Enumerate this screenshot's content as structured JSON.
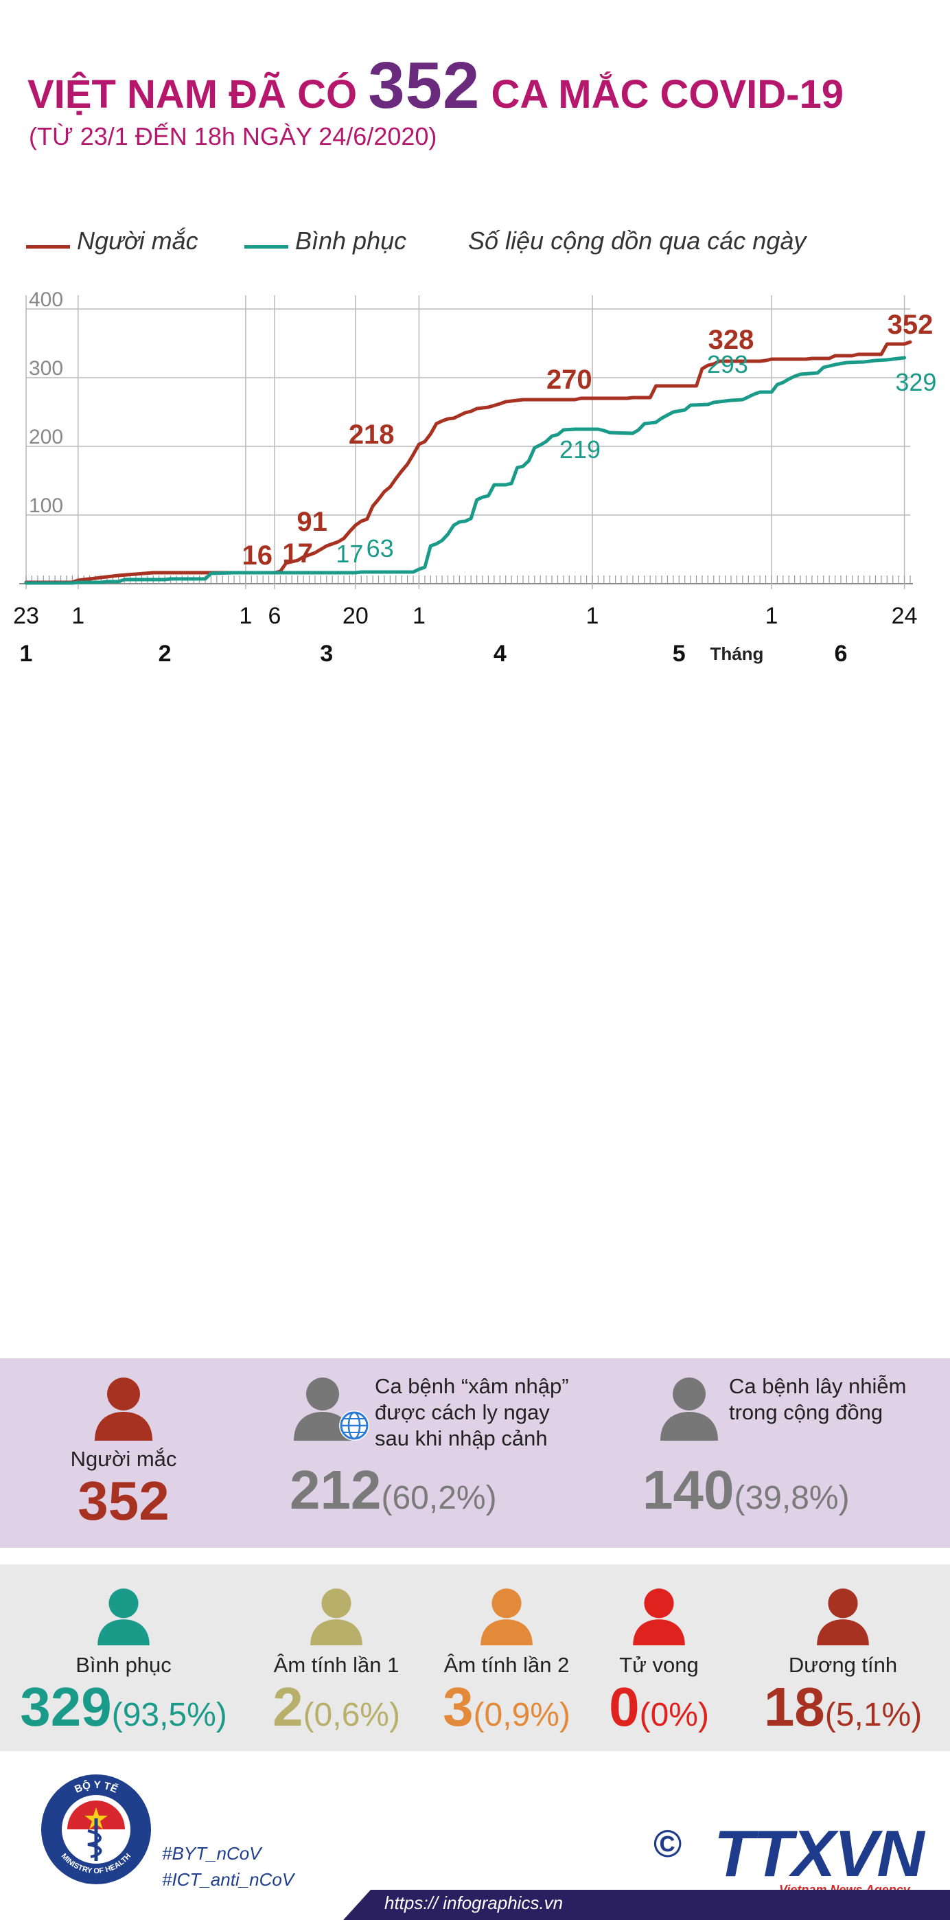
{
  "header": {
    "title_pre": "VIỆT NAM ĐÃ CÓ ",
    "title_number": "352",
    "title_post": " CA MẮC COVID-19",
    "subtitle": "(TỪ 23/1 ĐẾN 18h NGÀY 24/6/2020)"
  },
  "legend": {
    "cases_label": "Người mắc",
    "recovered_label": "Bình phục",
    "note": "Số liệu cộng dồn qua các ngày"
  },
  "colors": {
    "cases": "#a83221",
    "recovered": "#1a9b8a",
    "title": "#b5176c",
    "purple": "#6a2a7d",
    "grey": "#7a7a7a",
    "olive": "#b8b06a",
    "orange": "#e3893a",
    "red": "#e0221e"
  },
  "chart_data": {
    "type": "line",
    "title": "VIỆT NAM ĐÃ CÓ 352 CA MẮC COVID-19",
    "ylim": [
      0,
      400
    ],
    "xlim": [
      0,
      153
    ],
    "yticks": [
      "100",
      "200",
      "300",
      "400"
    ],
    "xticks": [
      {
        "x": 0,
        "label": "23"
      },
      {
        "x": 9,
        "label": "1"
      },
      {
        "x": 38,
        "label": "1"
      },
      {
        "x": 43,
        "label": "6"
      },
      {
        "x": 57,
        "label": "20"
      },
      {
        "x": 68,
        "label": "1"
      },
      {
        "x": 98,
        "label": "1"
      },
      {
        "x": 129,
        "label": "1"
      },
      {
        "x": 152,
        "label": "24"
      }
    ],
    "months": [
      {
        "x": 0,
        "label": "1"
      },
      {
        "x": 24,
        "label": "2"
      },
      {
        "x": 52,
        "label": "3"
      },
      {
        "x": 82,
        "label": "4"
      },
      {
        "x": 113,
        "label": "5"
      },
      {
        "x": 141,
        "label": "6"
      }
    ],
    "month_axis_label": "Tháng",
    "series": [
      {
        "name": "Người mắc",
        "points": [
          [
            0,
            2
          ],
          [
            8,
            2
          ],
          [
            9,
            5
          ],
          [
            12,
            8
          ],
          [
            14,
            10
          ],
          [
            16,
            12
          ],
          [
            19,
            14
          ],
          [
            22,
            16
          ],
          [
            38,
            16
          ],
          [
            43,
            16
          ],
          [
            44,
            18
          ],
          [
            45,
            30
          ],
          [
            47,
            34
          ],
          [
            48,
            39
          ],
          [
            50,
            45
          ],
          [
            52,
            55
          ],
          [
            54,
            61
          ],
          [
            55,
            66
          ],
          [
            56,
            76
          ],
          [
            57,
            85
          ],
          [
            58,
            91
          ],
          [
            59,
            94
          ],
          [
            60,
            113
          ],
          [
            61,
            123
          ],
          [
            62,
            134
          ],
          [
            63,
            141
          ],
          [
            64,
            153
          ],
          [
            65,
            164
          ],
          [
            66,
            174
          ],
          [
            67,
            188
          ],
          [
            68,
            203
          ],
          [
            69,
            207
          ],
          [
            70,
            218
          ],
          [
            71,
            233
          ],
          [
            72,
            237
          ],
          [
            73,
            240
          ],
          [
            74,
            241
          ],
          [
            75,
            245
          ],
          [
            76,
            249
          ],
          [
            77,
            251
          ],
          [
            78,
            255
          ],
          [
            80,
            257
          ],
          [
            82,
            262
          ],
          [
            83,
            265
          ],
          [
            86,
            268
          ],
          [
            95,
            268
          ],
          [
            96,
            270
          ],
          [
            104,
            270
          ],
          [
            105,
            271
          ],
          [
            108,
            271
          ],
          [
            109,
            288
          ],
          [
            116,
            288
          ],
          [
            117,
            313
          ],
          [
            118,
            318
          ],
          [
            119,
            320
          ],
          [
            120,
            324
          ],
          [
            127,
            324
          ],
          [
            128,
            325
          ],
          [
            129,
            327
          ],
          [
            135,
            327
          ],
          [
            136,
            328
          ],
          [
            139,
            328
          ],
          [
            140,
            332
          ],
          [
            143,
            332
          ],
          [
            144,
            334
          ],
          [
            148,
            334
          ],
          [
            149,
            349
          ],
          [
            152,
            349
          ],
          [
            153,
            352
          ]
        ]
      },
      {
        "name": "Bình phục",
        "points": [
          [
            0,
            1
          ],
          [
            8,
            1
          ],
          [
            9,
            2
          ],
          [
            13,
            2
          ],
          [
            14,
            3
          ],
          [
            16,
            3
          ],
          [
            17,
            6
          ],
          [
            24,
            6
          ],
          [
            25,
            7
          ],
          [
            31,
            7
          ],
          [
            32,
            15
          ],
          [
            36,
            16
          ],
          [
            38,
            16
          ],
          [
            43,
            16
          ],
          [
            57,
            16
          ],
          [
            58,
            17
          ],
          [
            67,
            17
          ],
          [
            68,
            21
          ],
          [
            69,
            24
          ],
          [
            70,
            55
          ],
          [
            71,
            58
          ],
          [
            72,
            63
          ],
          [
            73,
            72
          ],
          [
            74,
            85
          ],
          [
            75,
            90
          ],
          [
            76,
            91
          ],
          [
            77,
            95
          ],
          [
            78,
            122
          ],
          [
            79,
            126
          ],
          [
            80,
            128
          ],
          [
            81,
            144
          ],
          [
            83,
            144
          ],
          [
            84,
            146
          ],
          [
            85,
            169
          ],
          [
            86,
            171
          ],
          [
            87,
            179
          ],
          [
            88,
            198
          ],
          [
            89,
            202
          ],
          [
            90,
            207
          ],
          [
            91,
            215
          ],
          [
            92,
            217
          ],
          [
            93,
            224
          ],
          [
            95,
            225
          ],
          [
            99,
            225
          ],
          [
            100,
            223
          ],
          [
            101,
            220
          ],
          [
            105,
            219
          ],
          [
            106,
            224
          ],
          [
            107,
            233
          ],
          [
            109,
            235
          ],
          [
            110,
            241
          ],
          [
            112,
            250
          ],
          [
            114,
            253
          ],
          [
            115,
            260
          ],
          [
            118,
            261
          ],
          [
            119,
            264
          ],
          [
            122,
            267
          ],
          [
            124,
            268
          ],
          [
            126,
            276
          ],
          [
            127,
            279
          ],
          [
            129,
            279
          ],
          [
            130,
            290
          ],
          [
            131,
            293
          ],
          [
            132,
            298
          ],
          [
            133,
            302
          ],
          [
            134,
            305
          ],
          [
            137,
            307
          ],
          [
            138,
            315
          ],
          [
            140,
            319
          ],
          [
            142,
            322
          ],
          [
            145,
            323
          ],
          [
            146,
            324
          ],
          [
            147,
            325
          ],
          [
            149,
            326
          ],
          [
            151,
            328
          ],
          [
            152,
            329
          ]
        ]
      }
    ],
    "annotations": [
      {
        "series": 0,
        "x": 40,
        "y": 16,
        "label": "16"
      },
      {
        "series": 0,
        "x": 47,
        "y": 17,
        "label": "17"
      },
      {
        "series": 1,
        "x": 56,
        "y": 17,
        "label": "17"
      },
      {
        "series": 0,
        "x": 54,
        "y": 91,
        "label": "91"
      },
      {
        "series": 1,
        "x": 66,
        "y": 63,
        "label": "63"
      },
      {
        "series": 0,
        "x": 65,
        "y": 218,
        "label": "218"
      },
      {
        "series": 1,
        "x": 98,
        "y": 219,
        "label": "219"
      },
      {
        "series": 0,
        "x": 94,
        "y": 270,
        "label": "270"
      },
      {
        "series": 1,
        "x": 124,
        "y": 293,
        "label": "293"
      },
      {
        "series": 0,
        "x": 122,
        "y": 328,
        "label": "328"
      },
      {
        "series": 1,
        "x": 154,
        "y": 329,
        "label": "329"
      },
      {
        "series": 0,
        "x": 153,
        "y": 352,
        "label": "352"
      }
    ]
  },
  "summary": {
    "cases": {
      "label": "Người mắc",
      "value": "352"
    },
    "imported": {
      "label": "Ca bệnh “xâm nhập” được cách ly ngay sau khi nhập cảnh",
      "value": "212",
      "pct": "(60,2%)"
    },
    "community": {
      "label": "Ca bệnh lây nhiễm trong cộng đồng",
      "value": "140",
      "pct": "(39,8%)"
    }
  },
  "status": {
    "recovered": {
      "label": "Bình phục",
      "value": "329",
      "pct": "(93,5%)"
    },
    "neg1": {
      "label": "Âm tính lần 1",
      "value": "2",
      "pct": "(0,6%)"
    },
    "neg2": {
      "label": "Âm tính lần 2",
      "value": "3",
      "pct": "(0,9%)"
    },
    "deaths": {
      "label": "Tử vong",
      "value": "0",
      "pct": "(0%)"
    },
    "positive": {
      "label": "Dương tính",
      "value": "18",
      "pct": "(5,1%)"
    }
  },
  "footer": {
    "tag1": "#BYT_nCoV",
    "tag2": "#ICT_anti_nCoV",
    "url": "https:// infographics.vn",
    "agency": "TTXVN",
    "agency_en": "Vietnam News Agency",
    "copyright": "©",
    "seal_top": "BỘ Y TẾ",
    "seal_bottom": "MINISTRY OF HEALTH"
  }
}
